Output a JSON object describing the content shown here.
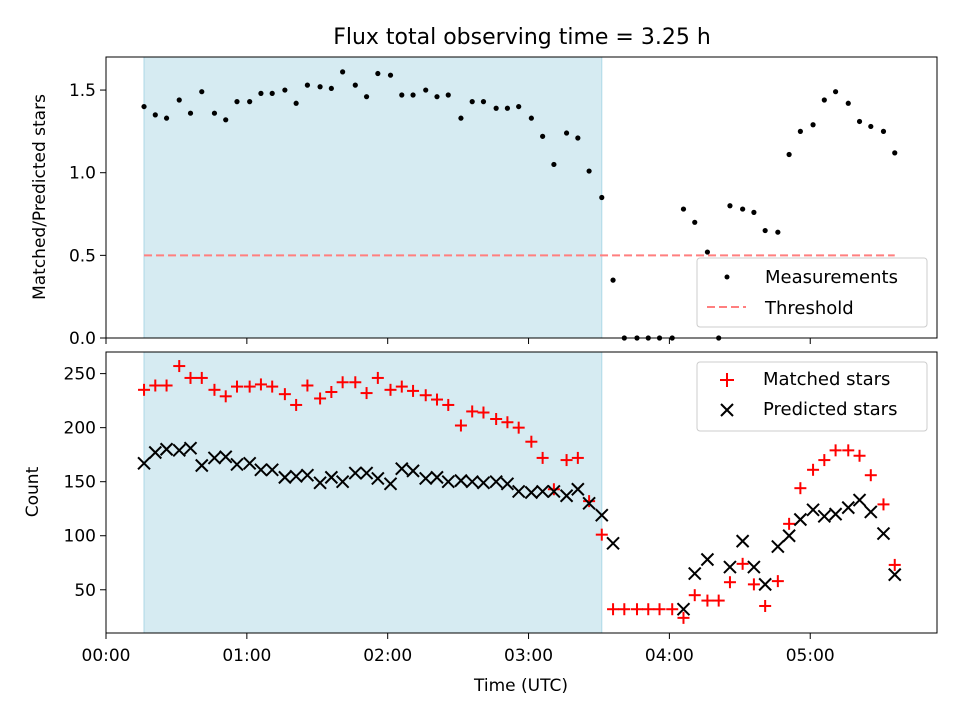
{
  "chart_data": [
    {
      "type": "scatter",
      "title": "Flux total observing time = 3.25 h",
      "xlabel": "",
      "ylabel": "Matched/Predicted stars",
      "xlim": [
        0,
        5.9
      ],
      "ylim": [
        0,
        1.7
      ],
      "yticks": [
        0.0,
        0.5,
        1.0,
        1.5
      ],
      "ytick_labels": [
        "0.0",
        "0.5",
        "1.0",
        "1.5"
      ],
      "shaded_span": [
        0.27,
        3.52
      ],
      "threshold": {
        "name": "Threshold",
        "value": 0.5,
        "x_range": [
          0.27,
          5.6
        ],
        "color": "#ff7f7f"
      },
      "legend": {
        "position": "lower-right",
        "entries": [
          "Measurements",
          "Threshold"
        ]
      },
      "series": [
        {
          "name": "Measurements",
          "color": "#000000",
          "x": [
            0.27,
            0.35,
            0.43,
            0.52,
            0.6,
            0.68,
            0.77,
            0.85,
            0.93,
            1.02,
            1.1,
            1.18,
            1.27,
            1.35,
            1.43,
            1.52,
            1.6,
            1.68,
            1.77,
            1.85,
            1.93,
            2.02,
            2.1,
            2.18,
            2.27,
            2.35,
            2.43,
            2.52,
            2.6,
            2.68,
            2.77,
            2.85,
            2.93,
            3.02,
            3.1,
            3.18,
            3.27,
            3.35,
            3.43,
            3.52,
            3.6,
            3.68,
            3.77,
            3.85,
            3.93,
            4.02,
            4.1,
            4.18,
            4.27,
            4.35,
            4.43,
            4.52,
            4.6,
            4.68,
            4.77,
            4.85,
            4.93,
            5.02,
            5.1,
            5.18,
            5.27,
            5.35,
            5.43,
            5.52,
            5.6
          ],
          "y": [
            1.4,
            1.35,
            1.33,
            1.44,
            1.36,
            1.49,
            1.36,
            1.32,
            1.43,
            1.43,
            1.48,
            1.48,
            1.5,
            1.42,
            1.53,
            1.52,
            1.51,
            1.61,
            1.53,
            1.46,
            1.6,
            1.59,
            1.47,
            1.47,
            1.5,
            1.46,
            1.47,
            1.33,
            1.43,
            1.43,
            1.39,
            1.39,
            1.4,
            1.33,
            1.22,
            1.05,
            1.24,
            1.21,
            1.01,
            0.85,
            0.35,
            0.0,
            0.0,
            0.0,
            0.0,
            0.0,
            0.78,
            0.7,
            0.52,
            0.0,
            0.8,
            0.78,
            0.76,
            0.65,
            0.64,
            1.11,
            1.25,
            1.29,
            1.44,
            1.49,
            1.42,
            1.31,
            1.28,
            1.25,
            1.12
          ]
        }
      ]
    },
    {
      "type": "scatter",
      "title": "",
      "xlabel": "Time (UTC)",
      "ylabel": "Count",
      "xlim": [
        0,
        5.9
      ],
      "ylim": [
        10,
        270
      ],
      "xticks": [
        0,
        1,
        2,
        3,
        4,
        5
      ],
      "xtick_labels": [
        "00:00",
        "01:00",
        "02:00",
        "03:00",
        "04:00",
        "05:00"
      ],
      "yticks": [
        50,
        100,
        150,
        200,
        250
      ],
      "ytick_labels": [
        "50",
        "100",
        "150",
        "200",
        "250"
      ],
      "shaded_span": [
        0.27,
        3.52
      ],
      "legend": {
        "position": "top-right",
        "entries": [
          "Matched stars",
          "Predicted stars"
        ]
      },
      "series": [
        {
          "name": "Matched stars",
          "marker": "plus",
          "color": "#ff0000",
          "x": [
            0.27,
            0.35,
            0.43,
            0.52,
            0.6,
            0.68,
            0.77,
            0.85,
            0.93,
            1.02,
            1.1,
            1.18,
            1.27,
            1.35,
            1.43,
            1.52,
            1.6,
            1.68,
            1.77,
            1.85,
            1.93,
            2.02,
            2.1,
            2.18,
            2.27,
            2.35,
            2.43,
            2.52,
            2.6,
            2.68,
            2.77,
            2.85,
            2.93,
            3.02,
            3.1,
            3.18,
            3.27,
            3.35,
            3.43,
            3.52,
            3.6,
            3.68,
            3.77,
            3.85,
            3.93,
            4.02,
            4.1,
            4.18,
            4.27,
            4.35,
            4.43,
            4.52,
            4.6,
            4.68,
            4.77,
            4.85,
            4.93,
            5.02,
            5.1,
            5.18,
            5.27,
            5.35,
            5.43,
            5.52,
            5.6
          ],
          "y": [
            235,
            239,
            239,
            257,
            246,
            246,
            235,
            229,
            238,
            238,
            240,
            238,
            231,
            221,
            239,
            227,
            233,
            242,
            242,
            232,
            246,
            235,
            238,
            234,
            230,
            226,
            221,
            202,
            215,
            214,
            208,
            205,
            200,
            187,
            172,
            143,
            170,
            172,
            132,
            101,
            32,
            32,
            32,
            32,
            32,
            32,
            24,
            45,
            40,
            40,
            57,
            74,
            55,
            35,
            58,
            111,
            144,
            161,
            170,
            179,
            179,
            174,
            156,
            129,
            73
          ]
        },
        {
          "name": "Predicted stars",
          "marker": "x",
          "color": "#000000",
          "x": [
            0.27,
            0.35,
            0.43,
            0.52,
            0.6,
            0.68,
            0.77,
            0.85,
            0.93,
            1.02,
            1.1,
            1.18,
            1.27,
            1.35,
            1.43,
            1.52,
            1.6,
            1.68,
            1.77,
            1.85,
            1.93,
            2.02,
            2.1,
            2.18,
            2.27,
            2.35,
            2.43,
            2.52,
            2.6,
            2.68,
            2.77,
            2.85,
            2.93,
            3.02,
            3.1,
            3.18,
            3.27,
            3.35,
            3.43,
            3.52,
            3.6,
            4.1,
            4.18,
            4.27,
            4.43,
            4.52,
            4.6,
            4.68,
            4.77,
            4.85,
            4.93,
            5.02,
            5.1,
            5.18,
            5.27,
            5.35,
            5.43,
            5.52,
            5.6
          ],
          "y": [
            167,
            177,
            180,
            179,
            181,
            165,
            172,
            173,
            166,
            167,
            161,
            161,
            154,
            155,
            156,
            149,
            154,
            150,
            158,
            158,
            153,
            148,
            162,
            160,
            153,
            154,
            150,
            151,
            150,
            149,
            150,
            148,
            141,
            140,
            141,
            141,
            137,
            143,
            130,
            119,
            93,
            32,
            65,
            78,
            71,
            95,
            71,
            55,
            90,
            100,
            115,
            124,
            118,
            120,
            126,
            133,
            122,
            102,
            64
          ]
        }
      ]
    }
  ]
}
